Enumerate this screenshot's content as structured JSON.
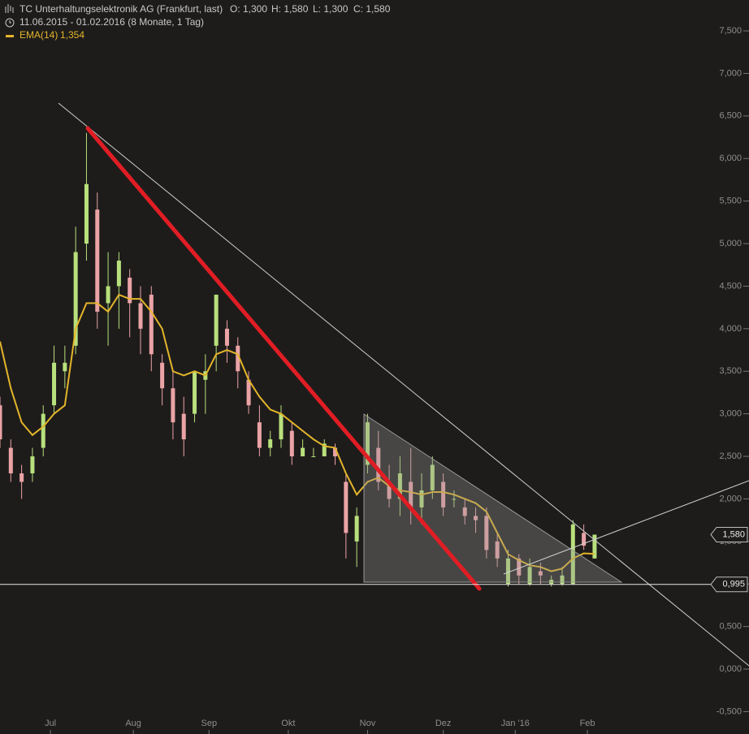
{
  "chart_data": {
    "type": "candlestick",
    "title": "TC Unterhaltungselektronik AG (Frankfurt, last)",
    "header_stats": [
      "O: 1,300",
      "H: 1,580",
      "L: 1,300",
      "C: 1,580"
    ],
    "subtitle": "11.06.2015 - 01.02.2016 (8 Monate, 1 Tag)",
    "x": [
      0,
      3,
      6,
      9,
      12,
      15,
      18,
      21,
      24,
      27,
      30,
      33,
      36,
      39,
      42,
      45,
      48,
      51,
      54,
      57,
      60,
      63,
      66,
      69,
      72,
      75,
      78,
      81,
      84,
      87,
      90,
      93,
      96,
      99,
      102,
      105,
      108,
      111,
      114,
      117,
      120,
      123,
      126,
      129,
      132,
      135,
      138,
      141,
      144,
      147,
      150,
      153,
      156,
      159,
      162,
      165
    ],
    "open": [
      3.1,
      2.6,
      2.3,
      2.3,
      2.6,
      3.1,
      3.5,
      3.8,
      5.0,
      5.4,
      4.3,
      4.5,
      4.6,
      4.3,
      4.4,
      3.6,
      3.3,
      3.0,
      3.0,
      3.4,
      3.8,
      4.0,
      3.8,
      3.4,
      2.9,
      2.6,
      2.7,
      2.8,
      2.5,
      2.5,
      2.5,
      2.6,
      2.2,
      1.5,
      2.4,
      2.6,
      2.2,
      2.0,
      2.2,
      1.9,
      2.1,
      2.2,
      2.0,
      1.9,
      1.8,
      1.8,
      1.5,
      1.0,
      1.3,
      1.0,
      1.15,
      1.0,
      1.0,
      1.0,
      1.6,
      1.3
    ],
    "high": [
      3.2,
      2.7,
      2.4,
      2.6,
      3.1,
      3.8,
      3.8,
      5.2,
      6.3,
      5.6,
      4.9,
      4.9,
      4.7,
      4.5,
      4.5,
      3.7,
      3.5,
      3.2,
      3.5,
      3.7,
      4.4,
      4.1,
      3.9,
      3.5,
      3.1,
      2.8,
      3.1,
      2.9,
      2.7,
      2.6,
      2.7,
      2.65,
      2.3,
      1.9,
      3.0,
      2.8,
      2.4,
      2.5,
      2.6,
      2.3,
      2.5,
      2.3,
      2.1,
      2.0,
      1.9,
      1.9,
      1.6,
      1.4,
      1.35,
      1.3,
      1.25,
      1.1,
      1.2,
      1.75,
      1.7,
      1.58
    ],
    "low": [
      2.6,
      2.2,
      2.0,
      2.2,
      2.5,
      3.0,
      3.3,
      3.7,
      4.8,
      4.0,
      3.8,
      4.0,
      3.9,
      3.7,
      3.5,
      3.1,
      2.7,
      2.5,
      2.9,
      3.0,
      3.5,
      3.6,
      3.3,
      3.0,
      2.5,
      2.5,
      2.6,
      2.4,
      2.5,
      2.5,
      2.5,
      2.4,
      1.3,
      1.2,
      2.3,
      2.1,
      1.9,
      1.8,
      1.7,
      1.7,
      2.0,
      1.8,
      1.9,
      1.7,
      1.6,
      1.3,
      1.2,
      0.97,
      1.0,
      0.98,
      1.0,
      0.97,
      0.98,
      0.99,
      1.4,
      1.3
    ],
    "close": [
      2.7,
      2.3,
      2.2,
      2.5,
      3.0,
      3.6,
      3.6,
      4.9,
      5.7,
      4.2,
      4.5,
      4.8,
      4.3,
      4.0,
      3.7,
      3.3,
      2.9,
      2.7,
      3.5,
      3.5,
      4.4,
      3.8,
      3.5,
      3.1,
      2.6,
      2.7,
      3.0,
      2.5,
      2.6,
      2.5,
      2.65,
      2.5,
      1.6,
      1.8,
      2.9,
      2.2,
      2.0,
      2.3,
      1.9,
      2.1,
      2.4,
      1.9,
      2.0,
      1.8,
      1.75,
      1.4,
      1.3,
      1.3,
      1.1,
      1.2,
      1.1,
      1.05,
      1.1,
      1.7,
      1.45,
      1.58
    ],
    "up_color": "#b8e07c",
    "down_color": "#eba3a6",
    "series": [
      {
        "name": "EMA(14)",
        "color": "#e3b52a",
        "values": [
          3.85,
          3.3,
          2.9,
          2.75,
          2.85,
          3.0,
          3.1,
          4.0,
          4.3,
          4.3,
          4.2,
          4.4,
          4.35,
          4.35,
          4.2,
          4.0,
          3.5,
          3.45,
          3.5,
          3.45,
          3.7,
          3.75,
          3.7,
          3.4,
          3.2,
          3.05,
          3.0,
          2.9,
          2.8,
          2.7,
          2.62,
          2.6,
          2.3,
          2.05,
          2.2,
          2.25,
          2.15,
          2.1,
          2.08,
          2.05,
          2.08,
          2.08,
          2.05,
          2.0,
          1.95,
          1.85,
          1.6,
          1.35,
          1.28,
          1.22,
          1.2,
          1.15,
          1.18,
          1.3,
          1.36,
          1.354
        ],
        "value_labels": [
          null,
          null,
          null,
          null,
          null,
          null,
          null,
          null,
          null,
          null,
          null,
          null,
          null,
          null,
          null,
          null,
          null,
          null,
          null,
          null,
          null,
          null,
          null,
          null,
          null,
          null,
          null,
          null,
          null,
          null,
          null,
          null,
          null,
          null,
          null,
          null,
          null,
          null,
          null,
          null,
          null,
          null,
          null,
          null,
          null,
          null,
          null,
          null,
          null,
          null,
          null,
          null,
          null,
          null,
          null,
          "1,354"
        ]
      }
    ],
    "price_markers": [
      {
        "value": 1.58,
        "label": "1,580"
      },
      {
        "value": 0.995,
        "label": "0,995"
      }
    ],
    "xlim": [
      0,
      195
    ],
    "xticks": [
      {
        "value": 14,
        "label": "Jul"
      },
      {
        "value": 37,
        "label": "Aug"
      },
      {
        "value": 58,
        "label": "Sep"
      },
      {
        "value": 80,
        "label": "Okt"
      },
      {
        "value": 102,
        "label": "Nov"
      },
      {
        "value": 123,
        "label": "Dez"
      },
      {
        "value": 143,
        "label": "Jan '16"
      },
      {
        "value": 163,
        "label": "Feb"
      }
    ],
    "ylim": [
      -0.553,
      7.863
    ],
    "yticks": [
      {
        "value": -0.5,
        "label": "-0,500"
      },
      {
        "value": 0,
        "label": "0,000"
      },
      {
        "value": 0.5,
        "label": "0,500"
      },
      {
        "value": 1,
        "label": "1,000"
      },
      {
        "value": 1.5,
        "label": "1,500"
      },
      {
        "value": 2,
        "label": "2,000"
      },
      {
        "value": 2.5,
        "label": "2,500"
      },
      {
        "value": 3,
        "label": "3,000"
      },
      {
        "value": 3.5,
        "label": "3,500"
      },
      {
        "value": 4,
        "label": "4,000"
      },
      {
        "value": 4.5,
        "label": "4,500"
      },
      {
        "value": 5,
        "label": "5,000"
      },
      {
        "value": 5.5,
        "label": "5,500"
      },
      {
        "value": 6,
        "label": "6,000"
      },
      {
        "value": 6.5,
        "label": "6,500"
      },
      {
        "value": 7,
        "label": "7,000"
      },
      {
        "value": 7.5,
        "label": "7,500"
      }
    ]
  }
}
